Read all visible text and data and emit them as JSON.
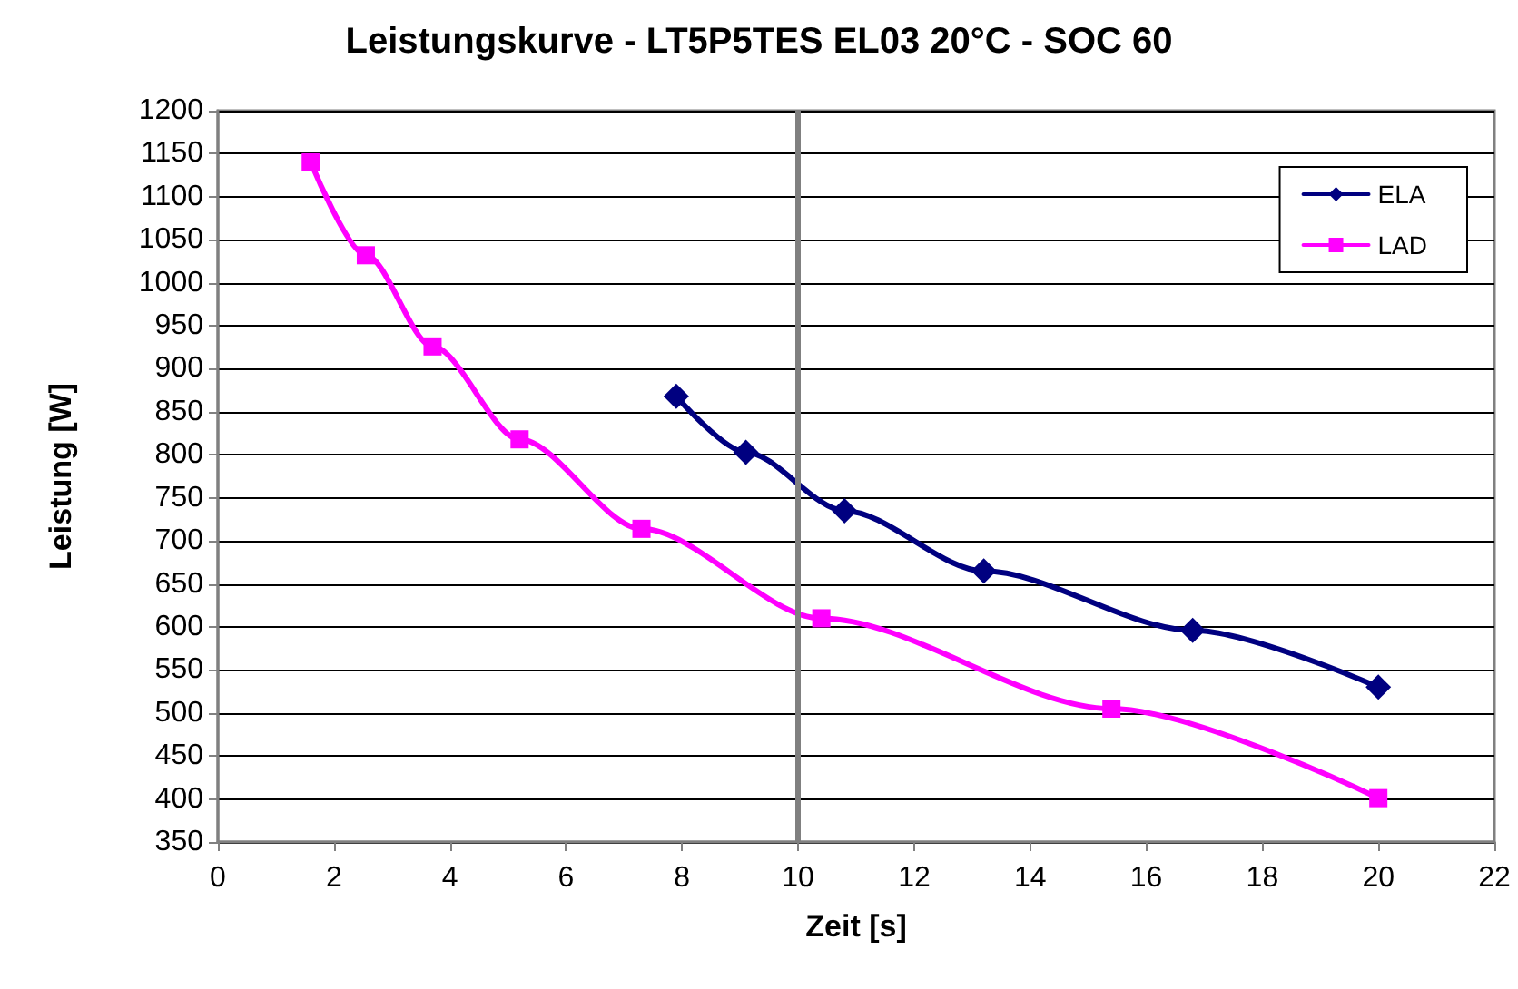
{
  "chart_data": {
    "type": "line",
    "title": "Leistungskurve - LT5P5TES EL03 20°C - SOC 60",
    "xlabel": "Zeit [s]",
    "ylabel": "Leistung [W]",
    "series": [
      {
        "name": "ELA",
        "color": "#000080",
        "marker": "diamond",
        "x": [
          7.9,
          9.1,
          10.8,
          13.2,
          16.8,
          20
        ],
        "values": [
          868,
          803,
          735,
          665,
          596,
          530
        ]
      },
      {
        "name": "LAD",
        "color": "#ff00ff",
        "marker": "square",
        "x": [
          1.6,
          2.55,
          3.7,
          5.2,
          7.3,
          10.4,
          15.4,
          20
        ],
        "values": [
          1140,
          1032,
          926,
          818,
          714,
          610,
          505,
          401
        ]
      }
    ],
    "xlim": [
      0,
      22
    ],
    "xticks": [
      0,
      2,
      4,
      6,
      8,
      10,
      12,
      14,
      16,
      18,
      20,
      22
    ],
    "ylim": [
      350,
      1200
    ],
    "yticks": [
      350,
      400,
      450,
      500,
      550,
      600,
      650,
      700,
      750,
      800,
      850,
      900,
      950,
      1000,
      1050,
      1100,
      1150,
      1200
    ],
    "grid": "y",
    "legend": "top right",
    "ref_lines": [
      {
        "axis": "x",
        "value": 10,
        "color": "#808080"
      }
    ]
  }
}
